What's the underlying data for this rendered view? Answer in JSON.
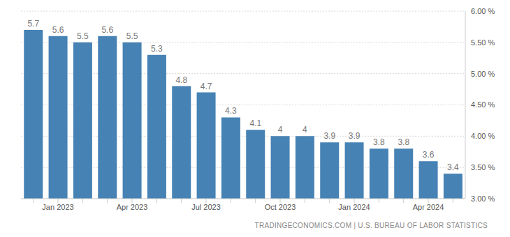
{
  "chart_data": {
    "type": "bar",
    "categories": [
      null,
      "Jan 2023",
      null,
      null,
      "Apr 2023",
      null,
      null,
      "Jul 2023",
      null,
      null,
      "Oct 2023",
      null,
      null,
      "Jan 2024",
      null,
      null,
      "Apr 2024",
      null
    ],
    "values": [
      5.7,
      5.6,
      5.5,
      5.6,
      5.5,
      5.3,
      4.8,
      4.7,
      4.3,
      4.1,
      4,
      4,
      3.9,
      3.9,
      3.8,
      3.8,
      3.6,
      3.4
    ],
    "color": "#4682b4",
    "ylim": [
      3,
      6
    ],
    "yticks": [
      {
        "value": 3,
        "label": "3.00 %"
      },
      {
        "value": 3.5,
        "label": "3.50 %"
      },
      {
        "value": 4,
        "label": "4.00 %"
      },
      {
        "value": 4.5,
        "label": "4.50 %"
      },
      {
        "value": 5,
        "label": "5.00 %"
      },
      {
        "value": 5.5,
        "label": "5.50 %"
      },
      {
        "value": 6,
        "label": "6.00 %"
      }
    ],
    "grid": true,
    "data_labels": true,
    "annotations": [
      "TRADINGECONOMICS.COM | U.S. BUREAU OF LABOR STATISTICS"
    ]
  }
}
